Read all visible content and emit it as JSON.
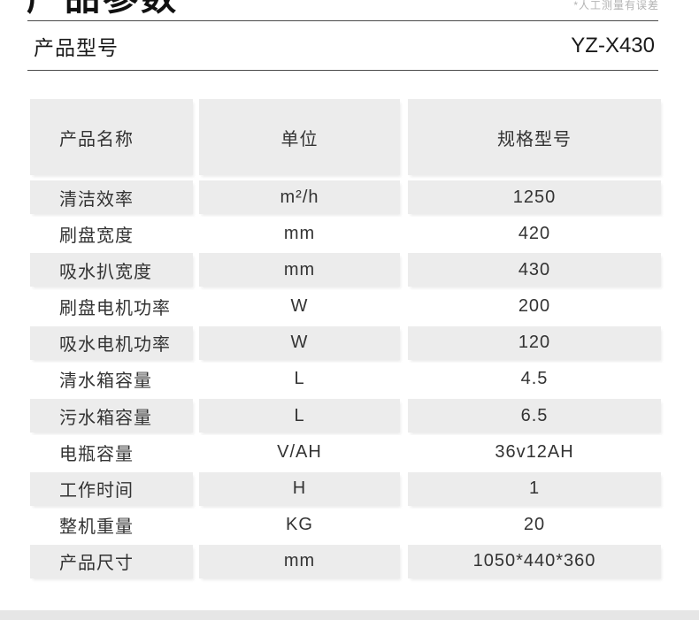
{
  "page": {
    "title": "产品参数",
    "disclaimer": "*人工测量有误差",
    "model_label": "产品型号",
    "model_value": "YZ-X430",
    "colors": {
      "cell_gray": "#ececec",
      "footer_band": "#e6e6e6",
      "rule": "#4a4a4a",
      "text": "#333333",
      "disclaimer_text": "#b3b3b3"
    }
  },
  "table": {
    "headers": [
      "产品名称",
      "单位",
      "规格型号"
    ],
    "rows": [
      {
        "name": "清洁效率",
        "unit": "m²/h",
        "value": "1250"
      },
      {
        "name": "刷盘宽度",
        "unit": "mm",
        "value": "420"
      },
      {
        "name": "吸水扒宽度",
        "unit": "mm",
        "value": "430"
      },
      {
        "name": "刷盘电机功率",
        "unit": "W",
        "value": "200"
      },
      {
        "name": "吸水电机功率",
        "unit": "W",
        "value": "120"
      },
      {
        "name": "清水箱容量",
        "unit": "L",
        "value": "4.5"
      },
      {
        "name": "污水箱容量",
        "unit": "L",
        "value": "6.5"
      },
      {
        "name": "电瓶容量",
        "unit": "V/AH",
        "value": "36v12AH"
      },
      {
        "name": "工作时间",
        "unit": "H",
        "value": "1"
      },
      {
        "name": "整机重量",
        "unit": "KG",
        "value": "20"
      },
      {
        "name": "产品尺寸",
        "unit": "mm",
        "value": "1050*440*360"
      }
    ]
  }
}
